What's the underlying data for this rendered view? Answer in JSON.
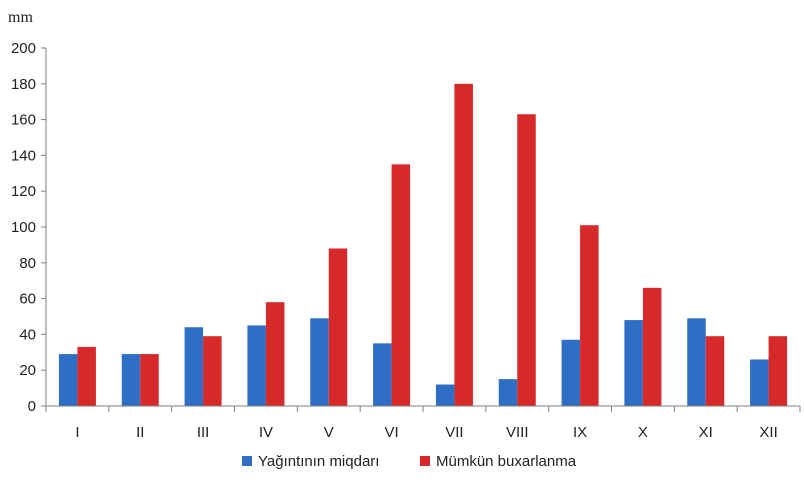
{
  "chart_data": {
    "type": "bar",
    "title": "",
    "ylabel": "mm",
    "xlabel": "",
    "categories": [
      "I",
      "II",
      "III",
      "IV",
      "V",
      "VI",
      "VII",
      "VIII",
      "IX",
      "X",
      "XI",
      "XII"
    ],
    "series": [
      {
        "name": "Yağıntının miqdarı",
        "color": "#2e6fc5",
        "values": [
          29,
          29,
          44,
          45,
          49,
          35,
          12,
          15,
          37,
          48,
          49,
          26
        ]
      },
      {
        "name": "Mümkün buxarlanma",
        "color": "#d62a2a",
        "values": [
          33,
          29,
          39,
          58,
          88,
          135,
          180,
          163,
          101,
          66,
          39,
          39
        ]
      }
    ],
    "ylim": [
      0,
      200
    ],
    "yticks": [
      0,
      20,
      40,
      60,
      80,
      100,
      120,
      140,
      160,
      180,
      200
    ],
    "grid": false,
    "legend": "bottom"
  }
}
